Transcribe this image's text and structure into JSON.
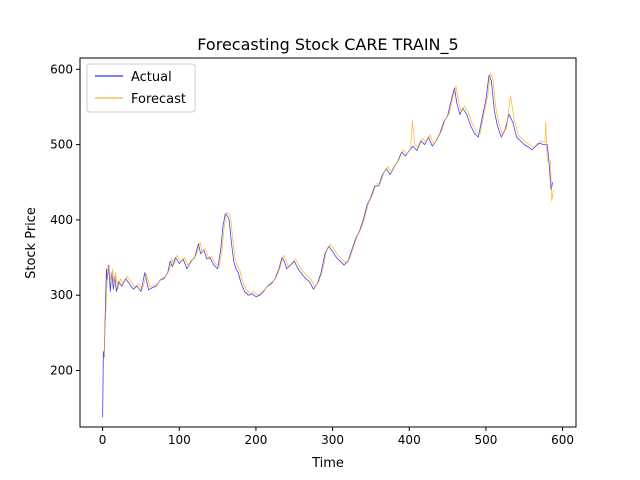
{
  "chart_data": {
    "type": "line",
    "title": "Forecasting Stock CARE TRAIN_5",
    "xlabel": "Time",
    "ylabel": "Stock Price",
    "xlim": [
      -29.5,
      617.5
    ],
    "ylim": [
      125,
      615
    ],
    "xticks": [
      0,
      100,
      200,
      300,
      400,
      500,
      600
    ],
    "yticks": [
      200,
      300,
      400,
      500,
      600
    ],
    "grid": false,
    "legend_position": "top-left",
    "series": [
      {
        "name": "Actual",
        "color": "#0000ff",
        "points": [
          [
            0,
            138
          ],
          [
            1,
            225
          ],
          [
            2,
            218
          ],
          [
            3,
            258
          ],
          [
            5,
            335
          ],
          [
            6,
            320
          ],
          [
            8,
            340
          ],
          [
            10,
            305
          ],
          [
            12,
            330
          ],
          [
            14,
            308
          ],
          [
            16,
            325
          ],
          [
            18,
            305
          ],
          [
            21,
            318
          ],
          [
            25,
            312
          ],
          [
            30,
            322
          ],
          [
            35,
            315
          ],
          [
            40,
            308
          ],
          [
            45,
            312
          ],
          [
            50,
            305
          ],
          [
            55,
            330
          ],
          [
            60,
            307
          ],
          [
            65,
            310
          ],
          [
            70,
            312
          ],
          [
            75,
            320
          ],
          [
            80,
            322
          ],
          [
            85,
            330
          ],
          [
            88,
            345
          ],
          [
            91,
            338
          ],
          [
            95,
            350
          ],
          [
            100,
            342
          ],
          [
            105,
            348
          ],
          [
            110,
            335
          ],
          [
            115,
            345
          ],
          [
            120,
            350
          ],
          [
            125,
            368
          ],
          [
            128,
            355
          ],
          [
            132,
            360
          ],
          [
            136,
            348
          ],
          [
            140,
            350
          ],
          [
            145,
            340
          ],
          [
            150,
            335
          ],
          [
            154,
            360
          ],
          [
            157,
            392
          ],
          [
            160,
            408
          ],
          [
            163,
            405
          ],
          [
            165,
            400
          ],
          [
            168,
            370
          ],
          [
            171,
            345
          ],
          [
            174,
            335
          ],
          [
            177,
            330
          ],
          [
            180,
            318
          ],
          [
            185,
            305
          ],
          [
            190,
            300
          ],
          [
            195,
            302
          ],
          [
            200,
            298
          ],
          [
            205,
            300
          ],
          [
            210,
            305
          ],
          [
            215,
            312
          ],
          [
            220,
            315
          ],
          [
            225,
            322
          ],
          [
            230,
            335
          ],
          [
            234,
            350
          ],
          [
            237,
            345
          ],
          [
            240,
            335
          ],
          [
            245,
            340
          ],
          [
            250,
            345
          ],
          [
            255,
            335
          ],
          [
            260,
            328
          ],
          [
            265,
            322
          ],
          [
            270,
            318
          ],
          [
            275,
            308
          ],
          [
            280,
            315
          ],
          [
            285,
            330
          ],
          [
            290,
            355
          ],
          [
            295,
            365
          ],
          [
            300,
            358
          ],
          [
            305,
            350
          ],
          [
            310,
            345
          ],
          [
            315,
            340
          ],
          [
            320,
            345
          ],
          [
            325,
            360
          ],
          [
            330,
            375
          ],
          [
            335,
            385
          ],
          [
            340,
            400
          ],
          [
            345,
            420
          ],
          [
            350,
            430
          ],
          [
            355,
            445
          ],
          [
            360,
            445
          ],
          [
            365,
            460
          ],
          [
            370,
            468
          ],
          [
            375,
            460
          ],
          [
            380,
            470
          ],
          [
            385,
            478
          ],
          [
            390,
            490
          ],
          [
            395,
            485
          ],
          [
            400,
            492
          ],
          [
            405,
            498
          ],
          [
            410,
            492
          ],
          [
            415,
            505
          ],
          [
            420,
            500
          ],
          [
            425,
            510
          ],
          [
            430,
            498
          ],
          [
            435,
            505
          ],
          [
            440,
            515
          ],
          [
            445,
            530
          ],
          [
            450,
            538
          ],
          [
            455,
            560
          ],
          [
            459,
            575
          ],
          [
            462,
            555
          ],
          [
            466,
            540
          ],
          [
            470,
            548
          ],
          [
            475,
            540
          ],
          [
            480,
            525
          ],
          [
            485,
            515
          ],
          [
            490,
            510
          ],
          [
            495,
            535
          ],
          [
            500,
            560
          ],
          [
            504,
            592
          ],
          [
            507,
            585
          ],
          [
            511,
            545
          ],
          [
            515,
            525
          ],
          [
            520,
            510
          ],
          [
            525,
            520
          ],
          [
            530,
            540
          ],
          [
            535,
            530
          ],
          [
            540,
            510
          ],
          [
            545,
            505
          ],
          [
            550,
            500
          ],
          [
            555,
            497
          ],
          [
            560,
            493
          ],
          [
            565,
            498
          ],
          [
            570,
            502
          ],
          [
            575,
            500
          ],
          [
            580,
            500
          ],
          [
            582,
            480
          ],
          [
            585,
            440
          ],
          [
            587,
            450
          ]
        ]
      },
      {
        "name": "Forecast",
        "color": "#ffa500",
        "points": [
          [
            2,
            220
          ],
          [
            3,
            250
          ],
          [
            5,
            300
          ],
          [
            7,
            340
          ],
          [
            9,
            330
          ],
          [
            11,
            318
          ],
          [
            13,
            335
          ],
          [
            15,
            312
          ],
          [
            17,
            330
          ],
          [
            20,
            308
          ],
          [
            23,
            322
          ],
          [
            27,
            315
          ],
          [
            32,
            325
          ],
          [
            37,
            318
          ],
          [
            42,
            311
          ],
          [
            47,
            315
          ],
          [
            52,
            308
          ],
          [
            57,
            328
          ],
          [
            62,
            311
          ],
          [
            67,
            313
          ],
          [
            72,
            315
          ],
          [
            77,
            323
          ],
          [
            82,
            325
          ],
          [
            87,
            333
          ],
          [
            90,
            348
          ],
          [
            93,
            340
          ],
          [
            97,
            353
          ],
          [
            102,
            345
          ],
          [
            107,
            350
          ],
          [
            112,
            338
          ],
          [
            117,
            347
          ],
          [
            122,
            353
          ],
          [
            127,
            370
          ],
          [
            130,
            357
          ],
          [
            134,
            362
          ],
          [
            138,
            350
          ],
          [
            142,
            352
          ],
          [
            147,
            342
          ],
          [
            152,
            337
          ],
          [
            156,
            362
          ],
          [
            159,
            395
          ],
          [
            162,
            410
          ],
          [
            165,
            408
          ],
          [
            167,
            402
          ],
          [
            170,
            372
          ],
          [
            173,
            348
          ],
          [
            176,
            338
          ],
          [
            179,
            333
          ],
          [
            182,
            320
          ],
          [
            187,
            308
          ],
          [
            192,
            303
          ],
          [
            197,
            305
          ],
          [
            202,
            300
          ],
          [
            207,
            303
          ],
          [
            212,
            308
          ],
          [
            217,
            315
          ],
          [
            222,
            318
          ],
          [
            227,
            325
          ],
          [
            232,
            338
          ],
          [
            236,
            353
          ],
          [
            239,
            348
          ],
          [
            242,
            338
          ],
          [
            247,
            343
          ],
          [
            252,
            348
          ],
          [
            257,
            338
          ],
          [
            262,
            331
          ],
          [
            267,
            325
          ],
          [
            272,
            321
          ],
          [
            277,
            311
          ],
          [
            282,
            318
          ],
          [
            287,
            333
          ],
          [
            292,
            358
          ],
          [
            297,
            368
          ],
          [
            302,
            361
          ],
          [
            307,
            353
          ],
          [
            312,
            348
          ],
          [
            317,
            343
          ],
          [
            322,
            348
          ],
          [
            327,
            363
          ],
          [
            332,
            378
          ],
          [
            337,
            388
          ],
          [
            342,
            403
          ],
          [
            347,
            423
          ],
          [
            352,
            433
          ],
          [
            357,
            448
          ],
          [
            362,
            448
          ],
          [
            367,
            463
          ],
          [
            372,
            471
          ],
          [
            377,
            463
          ],
          [
            382,
            473
          ],
          [
            387,
            481
          ],
          [
            392,
            493
          ],
          [
            397,
            488
          ],
          [
            402,
            495
          ],
          [
            404,
            532
          ],
          [
            407,
            501
          ],
          [
            412,
            495
          ],
          [
            417,
            508
          ],
          [
            422,
            503
          ],
          [
            427,
            513
          ],
          [
            432,
            501
          ],
          [
            437,
            508
          ],
          [
            442,
            518
          ],
          [
            447,
            533
          ],
          [
            452,
            541
          ],
          [
            457,
            563
          ],
          [
            461,
            578
          ],
          [
            464,
            558
          ],
          [
            468,
            543
          ],
          [
            472,
            551
          ],
          [
            477,
            543
          ],
          [
            482,
            528
          ],
          [
            487,
            518
          ],
          [
            492,
            513
          ],
          [
            497,
            538
          ],
          [
            502,
            563
          ],
          [
            506,
            595
          ],
          [
            509,
            588
          ],
          [
            513,
            548
          ],
          [
            517,
            528
          ],
          [
            522,
            513
          ],
          [
            527,
            523
          ],
          [
            532,
            565
          ],
          [
            537,
            533
          ],
          [
            542,
            513
          ],
          [
            547,
            508
          ],
          [
            552,
            503
          ],
          [
            557,
            500
          ],
          [
            562,
            496
          ],
          [
            567,
            501
          ],
          [
            572,
            505
          ],
          [
            577,
            503
          ],
          [
            578,
            530
          ],
          [
            580,
            478
          ],
          [
            584,
            478
          ],
          [
            586,
            425
          ],
          [
            588,
            440
          ]
        ]
      }
    ]
  }
}
